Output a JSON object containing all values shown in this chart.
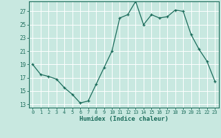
{
  "x": [
    0,
    1,
    2,
    3,
    4,
    5,
    6,
    7,
    8,
    9,
    10,
    11,
    12,
    13,
    14,
    15,
    16,
    17,
    18,
    19,
    20,
    21,
    22,
    23
  ],
  "y": [
    19.0,
    17.5,
    17.2,
    16.8,
    15.5,
    14.5,
    13.2,
    13.5,
    16.0,
    18.5,
    21.0,
    26.0,
    26.5,
    28.5,
    25.0,
    26.5,
    26.0,
    26.2,
    27.2,
    27.0,
    23.5,
    21.3,
    19.5,
    16.5
  ],
  "xlabel": "Humidex (Indice chaleur)",
  "yticks": [
    13,
    15,
    17,
    19,
    21,
    23,
    25,
    27
  ],
  "xticks": [
    0,
    1,
    2,
    3,
    4,
    5,
    6,
    7,
    8,
    9,
    10,
    11,
    12,
    13,
    14,
    15,
    16,
    17,
    18,
    19,
    20,
    21,
    22,
    23
  ],
  "ylim": [
    12.5,
    28.5
  ],
  "xlim": [
    -0.5,
    23.5
  ],
  "line_color": "#1a6b5a",
  "marker": "+",
  "bg_color": "#c8e8e0",
  "grid_color": "#ffffff",
  "tick_color": "#1a6b5a",
  "label_color": "#1a6b5a"
}
